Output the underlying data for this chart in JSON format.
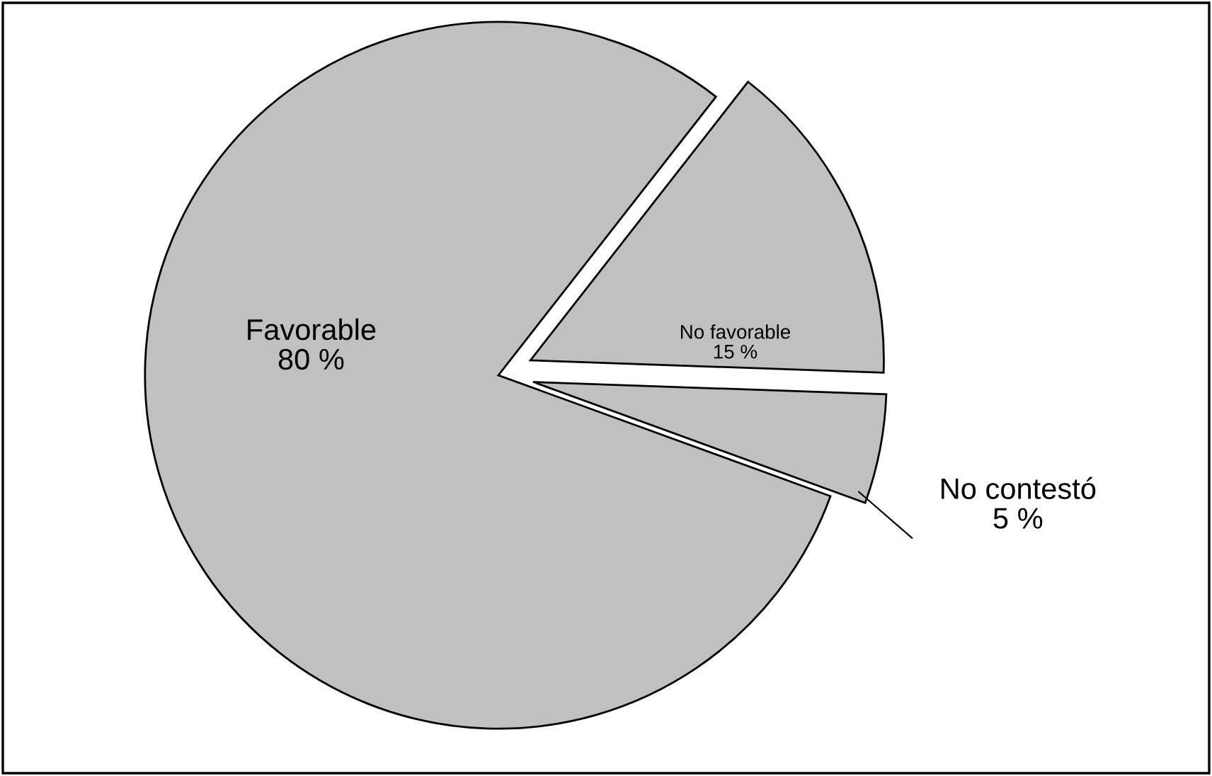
{
  "chart_data": {
    "type": "pie",
    "categories": [
      "Favorable",
      "No favorable",
      "No contestó"
    ],
    "values": [
      80,
      15,
      5
    ],
    "value_labels": [
      "80 %",
      "15 %",
      "5 %"
    ],
    "colors": [
      "#c0c0c0",
      "#c0c0c0",
      "#c0c0c0"
    ],
    "legend": false
  }
}
